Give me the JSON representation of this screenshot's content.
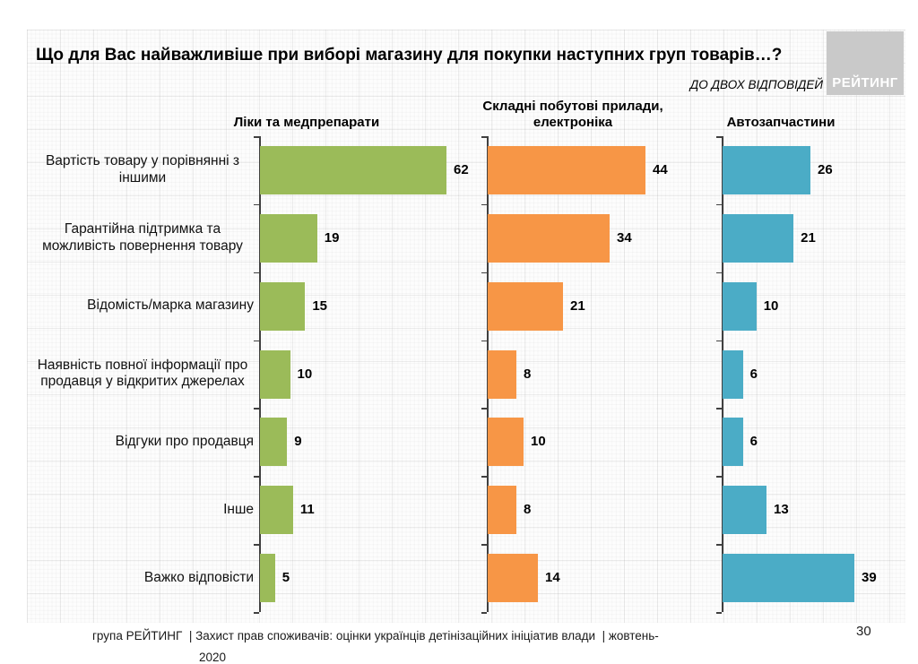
{
  "title": "Що для Вас найважливіше при виборі магазину для покупки наступних груп товарів…?",
  "subtitle": "ДО ДВОХ ВІДПОВІДЕЙ",
  "logo": {
    "text": "РЕЙТИНГ",
    "bg_color": "#c9c9c9"
  },
  "footer": {
    "line1": "група РЕЙТИНГ  | Захист прав споживачів: оцінки українців детінізаційних ініціатив влади  | жовтень-",
    "line2": "2020"
  },
  "page_number": "30",
  "chart_data": {
    "type": "bar",
    "orientation": "horizontal",
    "title": "Що для Вас найважливіше при виборі магазину для покупки наступних груп товарів…?",
    "note": "ДО ДВОХ ВІДПОВІДЕЙ",
    "value_labels_shown": true,
    "grid": "graph-paper background",
    "legend_position": "column headers above each panel",
    "categories": [
      "Вартість товару у порівнянні з іншими",
      "Гарантійна підтримка та можливість повернення товару",
      "Відомість/марка магазину",
      "Наявність повної інформації про продавця у відкритих джерелах",
      "Відгуки про продавця",
      "Інше",
      "Важко відповісти"
    ],
    "series": [
      {
        "name": "Ліки та медпрепарати",
        "color": "#9bbb59",
        "values": [
          62,
          19,
          15,
          10,
          9,
          11,
          5
        ]
      },
      {
        "name": "Складні побутові прилади, електроніка",
        "color": "#f79646",
        "values": [
          44,
          34,
          21,
          8,
          10,
          8,
          14
        ]
      },
      {
        "name": "Автозапчастини",
        "color": "#4bacc6",
        "values": [
          26,
          21,
          10,
          6,
          6,
          13,
          39
        ]
      }
    ]
  }
}
